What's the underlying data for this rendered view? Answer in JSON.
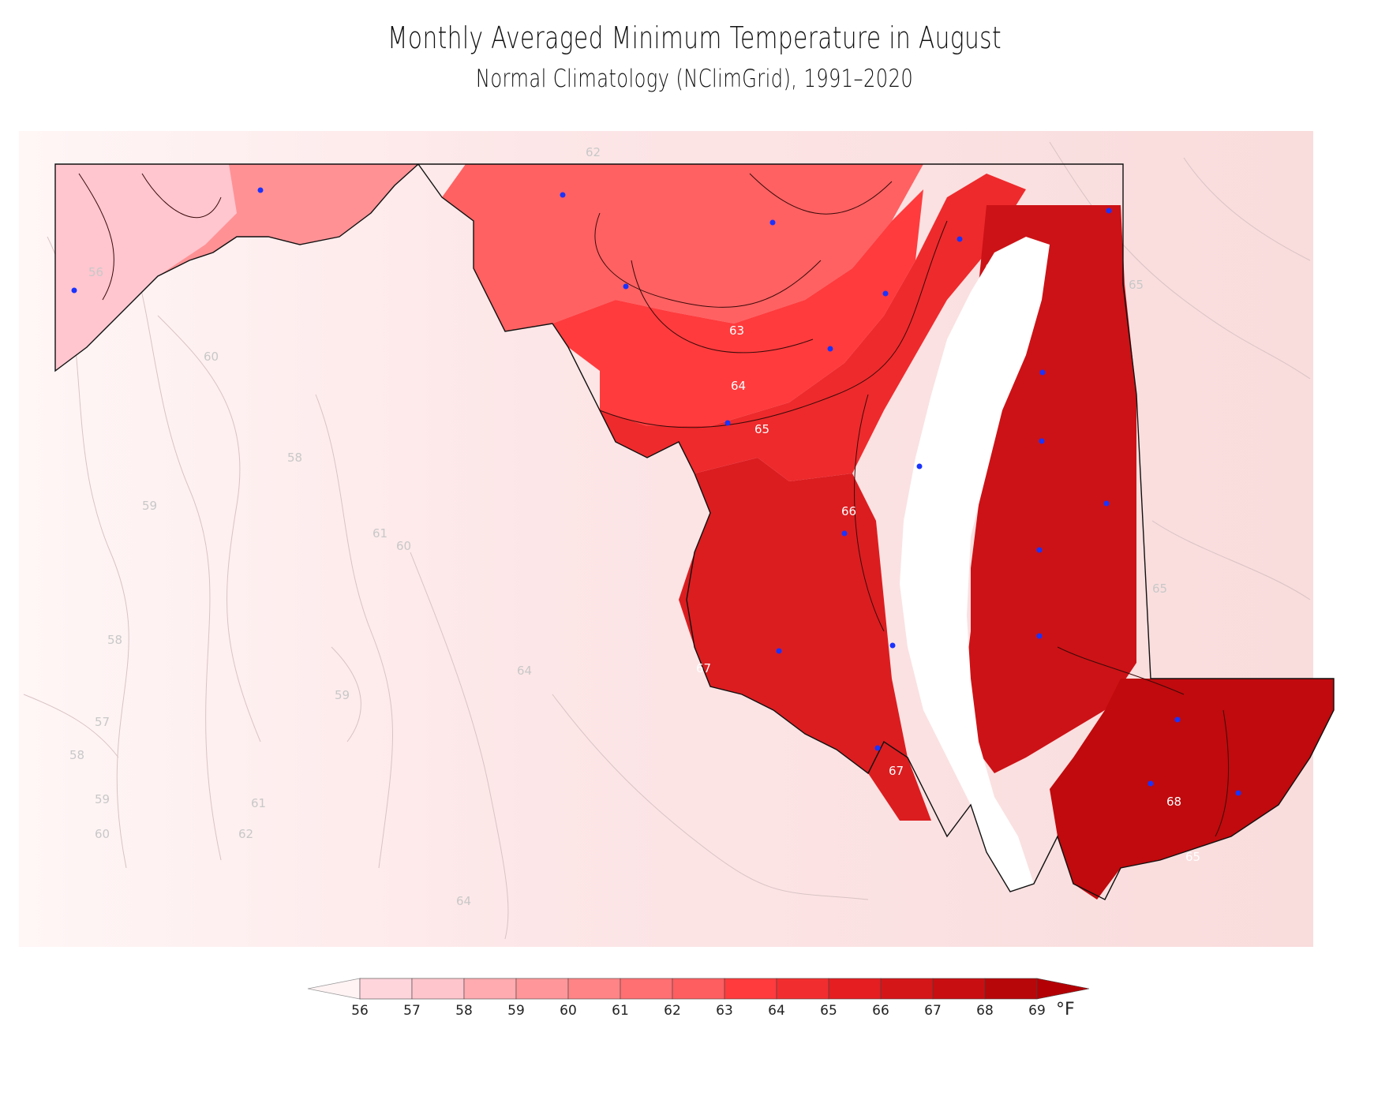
{
  "title": "Monthly Averaged Minimum Temperature in August",
  "subtitle": "Normal Climatology (NClimGrid), 1991–2020",
  "colorbar": {
    "ticks": [
      "56",
      "57",
      "58",
      "59",
      "60",
      "61",
      "62",
      "63",
      "64",
      "65",
      "66",
      "67",
      "68",
      "69"
    ],
    "unit": "°F",
    "colors": [
      "#ffd5dc",
      "#ffc5cc",
      "#ffabb0",
      "#ff979a",
      "#ff8486",
      "#ff7073",
      "#ff5e60",
      "#ff3b3d",
      "#f22d2f",
      "#e51e22",
      "#d51619",
      "#c90e12",
      "#b80709"
    ]
  },
  "contour_labels": {
    "outside": [
      "56",
      "60",
      "58",
      "59",
      "61",
      "60",
      "58",
      "59",
      "57",
      "58",
      "59",
      "60",
      "61",
      "62",
      "64",
      "64",
      "62",
      "65",
      "65"
    ],
    "inside": [
      "63",
      "64",
      "65",
      "66",
      "67",
      "67",
      "68",
      "66",
      "65"
    ]
  },
  "colors": {
    "land_outside": "#fde8e8",
    "west_zone": "#ffc6cf",
    "west_mid": "#ff8f93",
    "central_north": "#ff6162",
    "central_band": "#ff3b3d",
    "central_south": "#ee2a2c",
    "southern_md": "#db1d20",
    "eastern_shore": "#cc1216",
    "lower_shore": "#c00a0d",
    "stations": "#1a33ff"
  }
}
